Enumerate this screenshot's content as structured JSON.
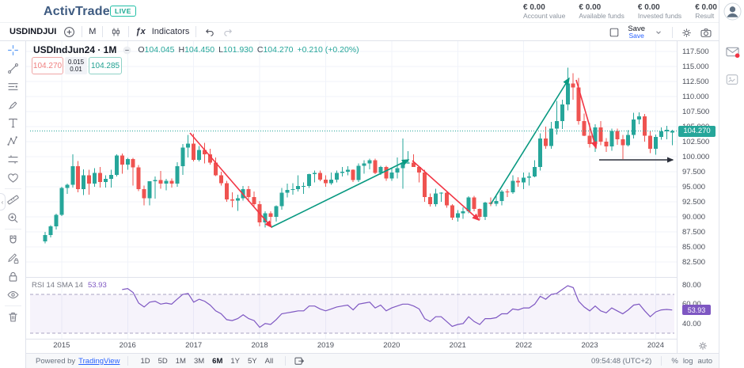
{
  "header": {
    "logo": "ActivTrader",
    "trademark": "™",
    "live_badge": "LIVE",
    "stats": [
      {
        "value": "€ 0.00",
        "label": "Account value"
      },
      {
        "value": "€ 0.00",
        "label": "Available funds"
      },
      {
        "value": "€ 0.00",
        "label": "Invested funds"
      },
      {
        "value": "€ 0.00",
        "label": "Result"
      }
    ]
  },
  "toolbar": {
    "symbol": "USDINDJUI",
    "timeframe": "M",
    "fx": "ƒx",
    "indicators_label": "Indicators",
    "save_label": "Save",
    "save_link": "Save"
  },
  "left_tools": [
    {
      "name": "crosshair-tool"
    },
    {
      "name": "trend-line-tool"
    },
    {
      "name": "fib-lines-tool"
    },
    {
      "name": "brush-tool"
    },
    {
      "name": "text-tool"
    },
    {
      "name": "xabcd-pattern-tool"
    },
    {
      "name": "position-tool"
    },
    {
      "name": "emoji-tool"
    },
    {
      "name": "measure-tool"
    },
    {
      "name": "zoom-in-tool"
    },
    {
      "name": "magnet-tool"
    },
    {
      "name": "drawing-lock-tool"
    },
    {
      "name": "lock-all-tool"
    },
    {
      "name": "hide-drawings-tool"
    },
    {
      "name": "remove-drawings-tool"
    }
  ],
  "legend": {
    "title": "USDIndJun24 · 1M",
    "o_label": "O",
    "o": "104.045",
    "h_label": "H",
    "h": "104.450",
    "l_label": "L",
    "l": "101.930",
    "c_label": "C",
    "c": "104.270",
    "change": "+0.210 (+0.20%)"
  },
  "trade_panel": {
    "sell": "104.270",
    "spread_top": "0.015",
    "spread_bottom": "0.01",
    "buy": "104.285"
  },
  "rsi_legend": {
    "label": "RSI 14 SMA 14",
    "value": "53.93"
  },
  "bottom_bar": {
    "powered_by": "Powered by",
    "tradingview": "TradingView",
    "timeframes": [
      "1D",
      "5D",
      "1M",
      "3M",
      "6M",
      "1Y",
      "5Y",
      "All"
    ],
    "active_timeframe": "6M",
    "clock": "09:54:48 (UTC+2)",
    "percent": "%",
    "log": "log",
    "auto": "auto"
  },
  "colors": {
    "up": "#26a69a",
    "down": "#ef5350",
    "trend_up": "#089981",
    "trend_down": "#f23645",
    "rsi_line": "#7e57c2",
    "band_fill": "rgba(126,87,194,0.07)",
    "band_edge": "#aaa6c3",
    "grid": "#f0f3fa",
    "border": "#e0e3eb",
    "arrow": "#2a2e39",
    "last_price": "#26a69a",
    "accent_blue": "#2962ff"
  },
  "chart_data": {
    "type": "candlestick",
    "symbol": "USDIndJun24",
    "interval": "1M",
    "last_price": 104.27,
    "price_axis_labels": [
      117.5,
      115.0,
      112.5,
      110.0,
      107.5,
      105.0,
      102.5,
      100.0,
      97.5,
      95.0,
      92.5,
      90.0,
      87.5,
      85.0,
      82.5
    ],
    "years": [
      {
        "label": "2015",
        "i": 3
      },
      {
        "label": "2016",
        "i": 15
      },
      {
        "label": "2017",
        "i": 27
      },
      {
        "label": "2018",
        "i": 39
      },
      {
        "label": "2019",
        "i": 51
      },
      {
        "label": "2020",
        "i": 63
      },
      {
        "label": "2021",
        "i": 75
      },
      {
        "label": "2022",
        "i": 87
      },
      {
        "label": "2023",
        "i": 99
      },
      {
        "label": "2024",
        "i": 111
      }
    ],
    "candles": [
      [
        85.9,
        87.5,
        85.6,
        87.0
      ],
      [
        87.0,
        88.6,
        86.6,
        88.4
      ],
      [
        88.4,
        90.5,
        87.9,
        90.3
      ],
      [
        90.3,
        95.0,
        90.1,
        94.8
      ],
      [
        94.8,
        95.5,
        93.8,
        95.3
      ],
      [
        95.3,
        100.4,
        94.9,
        98.4
      ],
      [
        98.4,
        99.3,
        94.1,
        94.6
      ],
      [
        94.6,
        97.9,
        93.6,
        96.9
      ],
      [
        96.9,
        97.8,
        93.7,
        95.5
      ],
      [
        95.5,
        98.1,
        95.0,
        97.3
      ],
      [
        97.3,
        98.3,
        94.9,
        95.8
      ],
      [
        95.8,
        96.9,
        94.9,
        96.3
      ],
      [
        96.3,
        97.8,
        94.9,
        97.0
      ],
      [
        97.0,
        100.4,
        96.7,
        100.2
      ],
      [
        100.2,
        100.5,
        97.2,
        98.7
      ],
      [
        98.7,
        99.8,
        97.8,
        99.6
      ],
      [
        99.6,
        99.8,
        95.2,
        98.2
      ],
      [
        98.2,
        98.6,
        94.3,
        94.6
      ],
      [
        94.6,
        95.2,
        91.9,
        93.1
      ],
      [
        93.1,
        95.9,
        91.9,
        95.9
      ],
      [
        95.9,
        96.7,
        93.0,
        96.1
      ],
      [
        96.1,
        97.6,
        94.7,
        95.5
      ],
      [
        95.5,
        96.3,
        94.4,
        96.0
      ],
      [
        96.0,
        96.4,
        94.9,
        95.5
      ],
      [
        95.5,
        99.1,
        95.0,
        98.4
      ],
      [
        98.4,
        102.1,
        97.0,
        101.5
      ],
      [
        101.5,
        103.6,
        99.9,
        102.2
      ],
      [
        102.2,
        103.8,
        99.2,
        99.5
      ],
      [
        99.5,
        101.8,
        99.2,
        101.1
      ],
      [
        101.1,
        102.3,
        98.9,
        100.4
      ],
      [
        100.4,
        101.3,
        98.7,
        99.0
      ],
      [
        99.0,
        99.9,
        96.8,
        96.9
      ],
      [
        96.9,
        97.5,
        95.2,
        95.6
      ],
      [
        95.6,
        96.0,
        92.5,
        92.9
      ],
      [
        92.9,
        94.1,
        91.6,
        92.7
      ],
      [
        92.7,
        93.7,
        91.0,
        93.1
      ],
      [
        93.1,
        95.1,
        92.7,
        94.6
      ],
      [
        94.6,
        95.1,
        92.5,
        93.3
      ],
      [
        93.3,
        94.2,
        91.8,
        92.1
      ],
      [
        92.1,
        92.6,
        88.4,
        89.1
      ],
      [
        89.1,
        90.9,
        88.2,
        90.6
      ],
      [
        90.6,
        90.9,
        88.9,
        90.0
      ],
      [
        90.0,
        91.9,
        89.2,
        91.8
      ],
      [
        91.8,
        94.8,
        91.2,
        94.0
      ],
      [
        94.0,
        95.5,
        93.2,
        94.5
      ],
      [
        94.5,
        95.6,
        93.7,
        94.6
      ],
      [
        94.6,
        96.9,
        94.2,
        95.1
      ],
      [
        95.1,
        95.7,
        93.8,
        95.1
      ],
      [
        95.1,
        97.2,
        94.8,
        97.1
      ],
      [
        97.1,
        97.7,
        95.7,
        97.3
      ],
      [
        97.3,
        97.7,
        95.9,
        96.2
      ],
      [
        96.2,
        96.9,
        95.0,
        95.6
      ],
      [
        95.6,
        97.4,
        95.3,
        96.2
      ],
      [
        96.2,
        97.7,
        95.7,
        97.3
      ],
      [
        97.3,
        98.3,
        96.7,
        97.5
      ],
      [
        97.5,
        98.4,
        96.9,
        97.8
      ],
      [
        97.8,
        97.9,
        95.8,
        96.1
      ],
      [
        96.1,
        98.9,
        95.8,
        98.5
      ],
      [
        98.5,
        99.4,
        97.2,
        98.9
      ],
      [
        98.9,
        99.7,
        97.9,
        99.4
      ],
      [
        99.4,
        99.7,
        97.1,
        97.3
      ],
      [
        97.3,
        98.5,
        97.0,
        98.3
      ],
      [
        98.3,
        98.5,
        96.0,
        96.4
      ],
      [
        96.4,
        98.2,
        96.0,
        97.4
      ],
      [
        97.4,
        99.9,
        96.4,
        98.1
      ],
      [
        98.1,
        103.0,
        94.7,
        99.0
      ],
      [
        99.0,
        100.9,
        98.8,
        99.0
      ],
      [
        99.0,
        100.4,
        98.3,
        98.3
      ],
      [
        98.3,
        98.4,
        95.7,
        97.4
      ],
      [
        97.4,
        97.8,
        92.5,
        93.3
      ],
      [
        93.3,
        93.9,
        91.7,
        92.1
      ],
      [
        92.1,
        94.7,
        91.7,
        93.9
      ],
      [
        93.9,
        94.1,
        92.5,
        94.0
      ],
      [
        94.0,
        94.3,
        91.5,
        91.9
      ],
      [
        91.9,
        92.1,
        89.5,
        89.9
      ],
      [
        89.9,
        91.1,
        89.2,
        90.6
      ],
      [
        90.6,
        91.6,
        89.7,
        90.9
      ],
      [
        90.9,
        93.4,
        90.6,
        93.2
      ],
      [
        93.2,
        93.5,
        90.9,
        91.3
      ],
      [
        91.3,
        91.4,
        89.5,
        90.0
      ],
      [
        90.0,
        92.5,
        89.5,
        92.4
      ],
      [
        92.4,
        93.2,
        91.8,
        92.2
      ],
      [
        92.2,
        93.7,
        91.8,
        92.6
      ],
      [
        92.6,
        94.5,
        91.9,
        94.2
      ],
      [
        94.2,
        94.6,
        93.3,
        94.1
      ],
      [
        94.1,
        96.9,
        93.8,
        96.0
      ],
      [
        96.0,
        96.6,
        95.0,
        95.7
      ],
      [
        95.7,
        97.4,
        94.6,
        96.5
      ],
      [
        96.5,
        97.4,
        95.2,
        96.7
      ],
      [
        96.7,
        99.4,
        96.6,
        98.3
      ],
      [
        98.3,
        103.9,
        97.7,
        103.0
      ],
      [
        103.0,
        105.0,
        101.3,
        101.8
      ],
      [
        101.8,
        105.8,
        101.3,
        104.7
      ],
      [
        104.7,
        109.3,
        103.7,
        105.9
      ],
      [
        105.9,
        109.5,
        104.6,
        108.7
      ],
      [
        108.7,
        114.8,
        107.7,
        112.2
      ],
      [
        112.2,
        113.9,
        109.5,
        111.5
      ],
      [
        111.5,
        113.1,
        105.3,
        105.9
      ],
      [
        105.9,
        107.2,
        103.4,
        103.5
      ],
      [
        103.5,
        105.6,
        101.5,
        102.1
      ],
      [
        102.1,
        105.4,
        100.8,
        104.9
      ],
      [
        104.9,
        105.9,
        101.9,
        102.5
      ],
      [
        102.5,
        103.1,
        100.8,
        101.7
      ],
      [
        101.7,
        104.7,
        101.0,
        104.3
      ],
      [
        104.3,
        104.7,
        102.0,
        102.9
      ],
      [
        102.9,
        103.6,
        99.6,
        101.9
      ],
      [
        101.9,
        104.4,
        101.7,
        103.6
      ],
      [
        103.6,
        107.3,
        103.0,
        106.2
      ],
      [
        106.2,
        107.4,
        105.4,
        106.7
      ],
      [
        106.7,
        107.1,
        102.5,
        103.5
      ],
      [
        103.5,
        104.3,
        100.6,
        101.3
      ],
      [
        101.3,
        103.7,
        100.3,
        103.3
      ],
      [
        103.3,
        104.9,
        102.8,
        104.2
      ],
      [
        104.2,
        105.1,
        102.9,
        104.5
      ],
      [
        104.045,
        104.45,
        101.93,
        104.27
      ]
    ],
    "rsi": {
      "period_label": "RSI 14 SMA 14",
      "current": 53.93,
      "axis_labels": [
        80,
        60,
        40
      ],
      "band": [
        30,
        70
      ],
      "values": [
        null,
        null,
        null,
        null,
        null,
        null,
        null,
        null,
        null,
        null,
        null,
        null,
        null,
        null,
        75,
        76,
        72,
        61,
        57,
        62,
        63,
        60,
        61,
        60,
        65,
        70,
        71,
        62,
        65,
        63,
        59,
        53,
        50,
        44,
        43,
        45,
        49,
        45,
        43,
        36,
        40,
        39,
        44,
        50,
        51,
        52,
        53,
        53,
        58,
        58,
        55,
        53,
        55,
        57,
        58,
        59,
        54,
        60,
        61,
        62,
        56,
        59,
        53,
        56,
        58,
        60,
        60,
        58,
        55,
        45,
        42,
        47,
        47,
        42,
        37,
        39,
        40,
        47,
        42,
        39,
        45,
        45,
        46,
        50,
        50,
        55,
        54,
        56,
        56,
        60,
        68,
        65,
        70,
        71,
        75,
        79,
        77,
        63,
        57,
        53,
        58,
        53,
        51,
        56,
        53,
        50,
        54,
        59,
        60,
        53,
        47,
        52,
        54,
        54.5,
        53.93
      ]
    },
    "annotations": {
      "trend_lines": [
        {
          "from": [
            240,
            168
          ],
          "to": [
            343,
            287
          ],
          "dir": "down"
        },
        {
          "from": [
            343,
            287
          ],
          "to": [
            516,
            202
          ],
          "dir": "up"
        },
        {
          "from": [
            521,
            203
          ],
          "to": [
            605,
            278
          ],
          "dir": "down"
        },
        {
          "from": [
            620,
            258
          ],
          "to": [
            719,
            99
          ],
          "dir": "up"
        },
        {
          "from": [
            728,
            101
          ],
          "to": [
            753,
            187
          ],
          "dir": "down"
        }
      ],
      "arrow": {
        "from": [
          757,
          202
        ],
        "to": [
          850,
          202
        ]
      }
    }
  }
}
